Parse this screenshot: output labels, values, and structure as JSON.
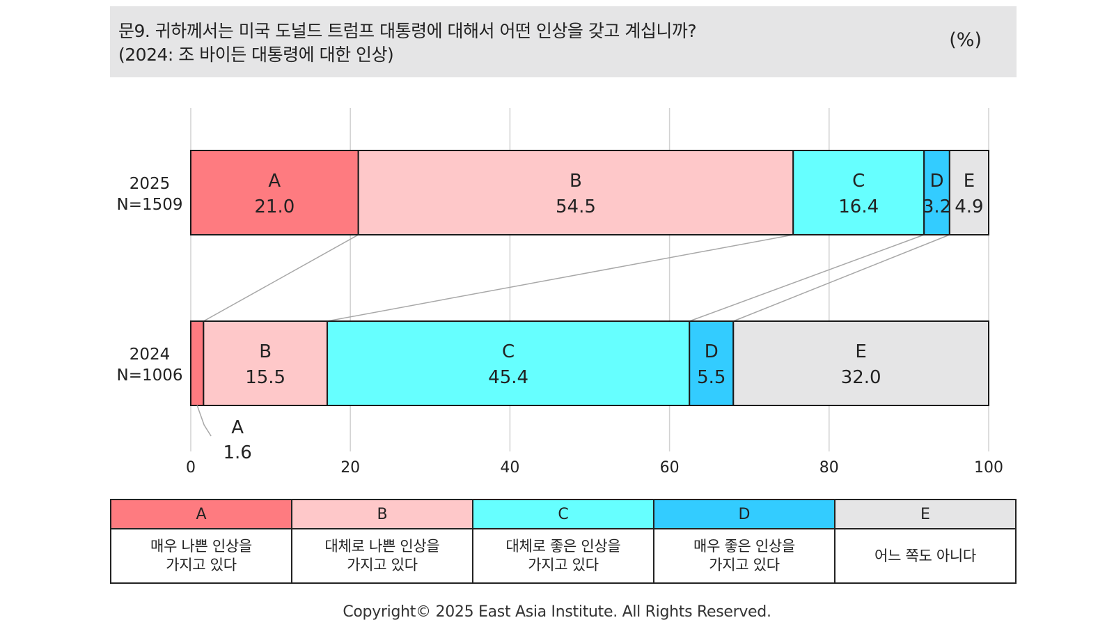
{
  "header": {
    "question_line1": "문9. 귀하께서는 미국 도널드 트럼프 대통령에 대해서 어떤 인상을 갖고 계십니까?",
    "question_line2": "(2024: 조 바이든 대통령에 대한 인상)",
    "unit": "(%)"
  },
  "chart_data": {
    "type": "bar",
    "orientation": "horizontal",
    "stacked": true,
    "categories": [
      "A",
      "B",
      "C",
      "D",
      "E"
    ],
    "rows": [
      {
        "year": "2025",
        "n": "N=1509",
        "values": [
          21.0,
          54.5,
          16.4,
          3.2,
          4.9
        ],
        "labels": [
          "21.0",
          "54.5",
          "16.4",
          "3.2",
          "4.9"
        ]
      },
      {
        "year": "2024",
        "n": "N=1006",
        "values": [
          1.6,
          15.5,
          45.4,
          5.5,
          32.0
        ],
        "labels": [
          "1.6",
          "15.5",
          "45.4",
          "5.5",
          "32.0"
        ]
      }
    ],
    "colors": [
      "#fe7b80",
      "#fec8c9",
      "#66ffff",
      "#33ccff",
      "#e5e5e6"
    ],
    "xlim": [
      0,
      100
    ],
    "xticks": [
      0,
      20,
      40,
      60,
      80,
      100
    ],
    "grid": true,
    "connector_lines": true
  },
  "legend": [
    {
      "key": "A",
      "desc": "매우 나쁜 인상을\n가지고 있다",
      "color": "#fe7b80"
    },
    {
      "key": "B",
      "desc": "대체로 나쁜 인상을\n가지고 있다",
      "color": "#fec8c9"
    },
    {
      "key": "C",
      "desc": "대체로 좋은 인상을\n가지고 있다",
      "color": "#66ffff"
    },
    {
      "key": "D",
      "desc": "매우 좋은 인상을\n가지고 있다",
      "color": "#33ccff"
    },
    {
      "key": "E",
      "desc": "어느 쪽도 아니다",
      "color": "#e5e5e6"
    }
  ],
  "footer": {
    "copyright": "Copyright© 2025 East Asia Institute. All Rights Reserved."
  }
}
